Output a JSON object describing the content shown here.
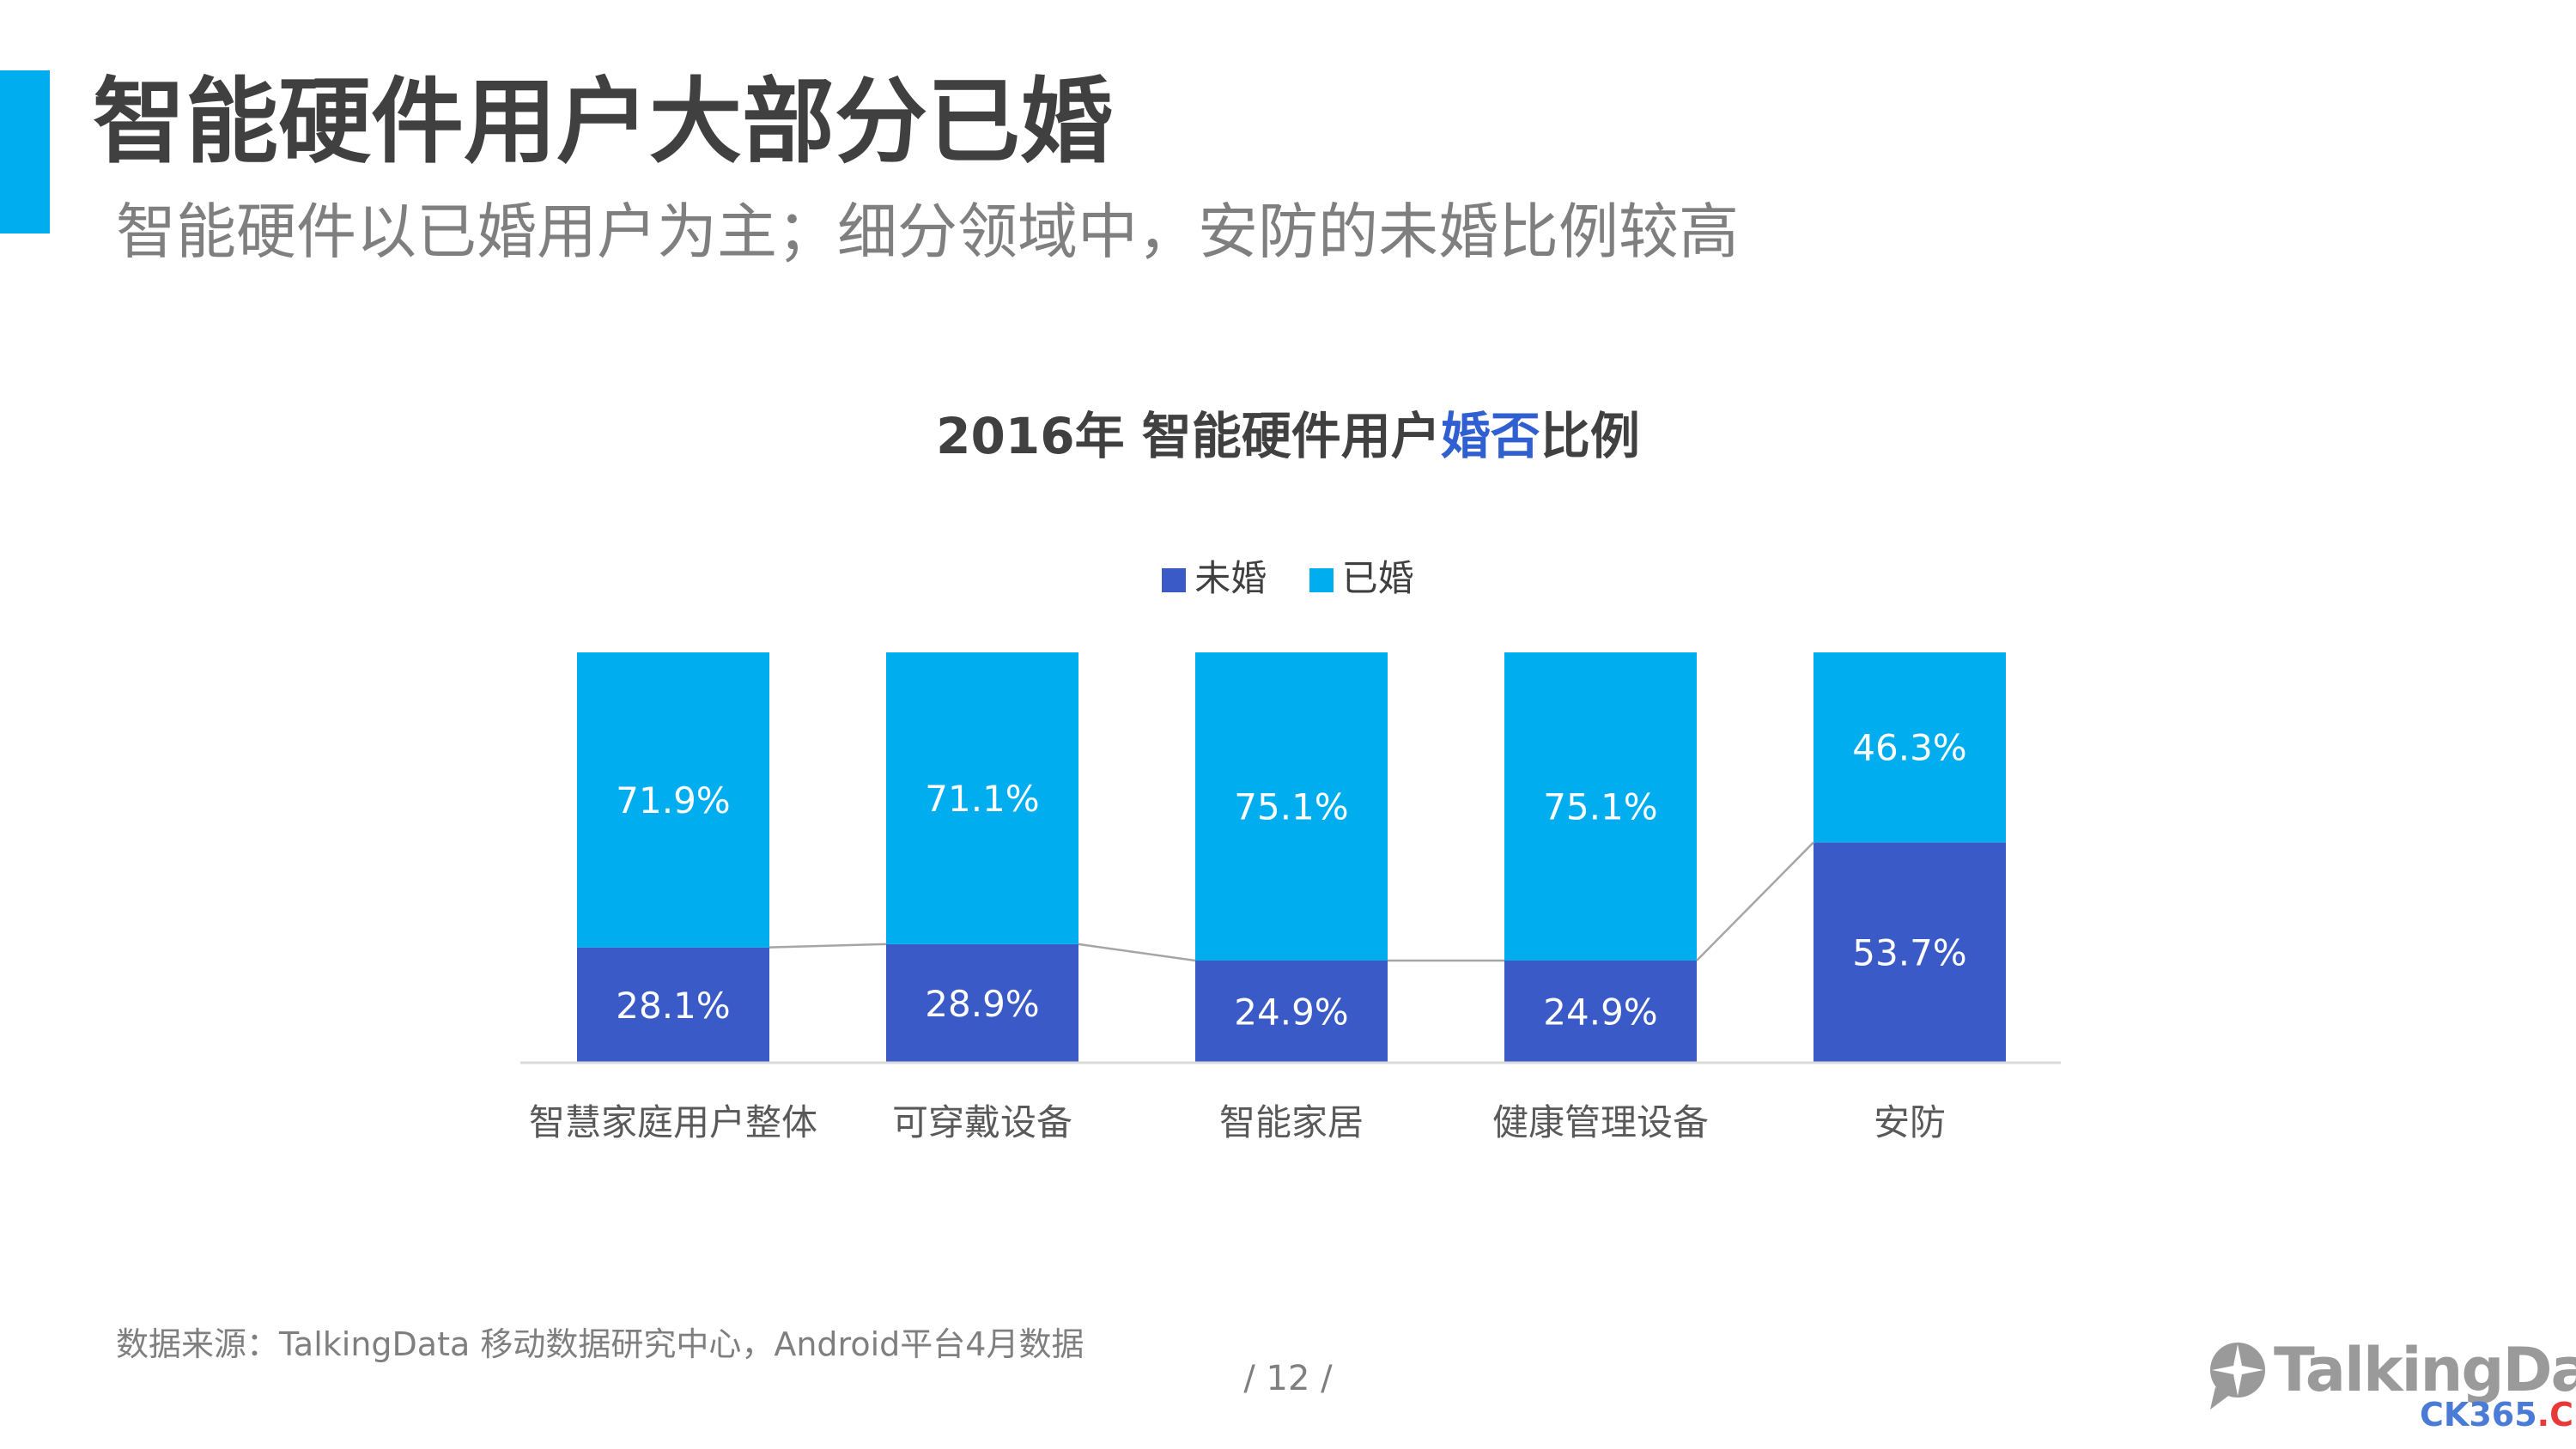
{
  "header": {
    "title": "智能硬件用户大部分已婚",
    "subtitle": "智能硬件以已婚用户为主；细分领域中，安防的未婚比例较高"
  },
  "chart_data": {
    "type": "bar",
    "stacked": true,
    "title_prefix": "2016年 智能硬件用户",
    "title_highlight": "婚否",
    "title_suffix": "比例",
    "categories": [
      "智慧家庭用户整体",
      "可穿戴设备",
      "智能家居",
      "健康管理设备",
      "安防"
    ],
    "series": [
      {
        "name": "未婚",
        "color": "#3A5BC7",
        "values": [
          28.1,
          28.9,
          24.9,
          24.9,
          53.7
        ]
      },
      {
        "name": "已婚",
        "color": "#00AEEF",
        "values": [
          71.9,
          71.1,
          75.1,
          75.1,
          46.3
        ]
      }
    ],
    "value_suffix": "%",
    "ylim": [
      0,
      100
    ],
    "legend_position": "top-center",
    "connector_lines": true,
    "grid": false
  },
  "footer": {
    "source": "数据来源：TalkingData 移动数据研究中心，Android平台4月数据",
    "page_number": "/  12  /",
    "logo_text": "TalkingData",
    "watermark_main": "CK365",
    "watermark_dot": ".",
    "watermark_tld": "CN"
  },
  "colors": {
    "accent": "#00AEEF",
    "title_highlight": "#2F5FD0",
    "unmarried": "#3A5BC7",
    "married": "#00AEEF"
  },
  "icons": {
    "logo": "talkingdata-logo-icon"
  }
}
